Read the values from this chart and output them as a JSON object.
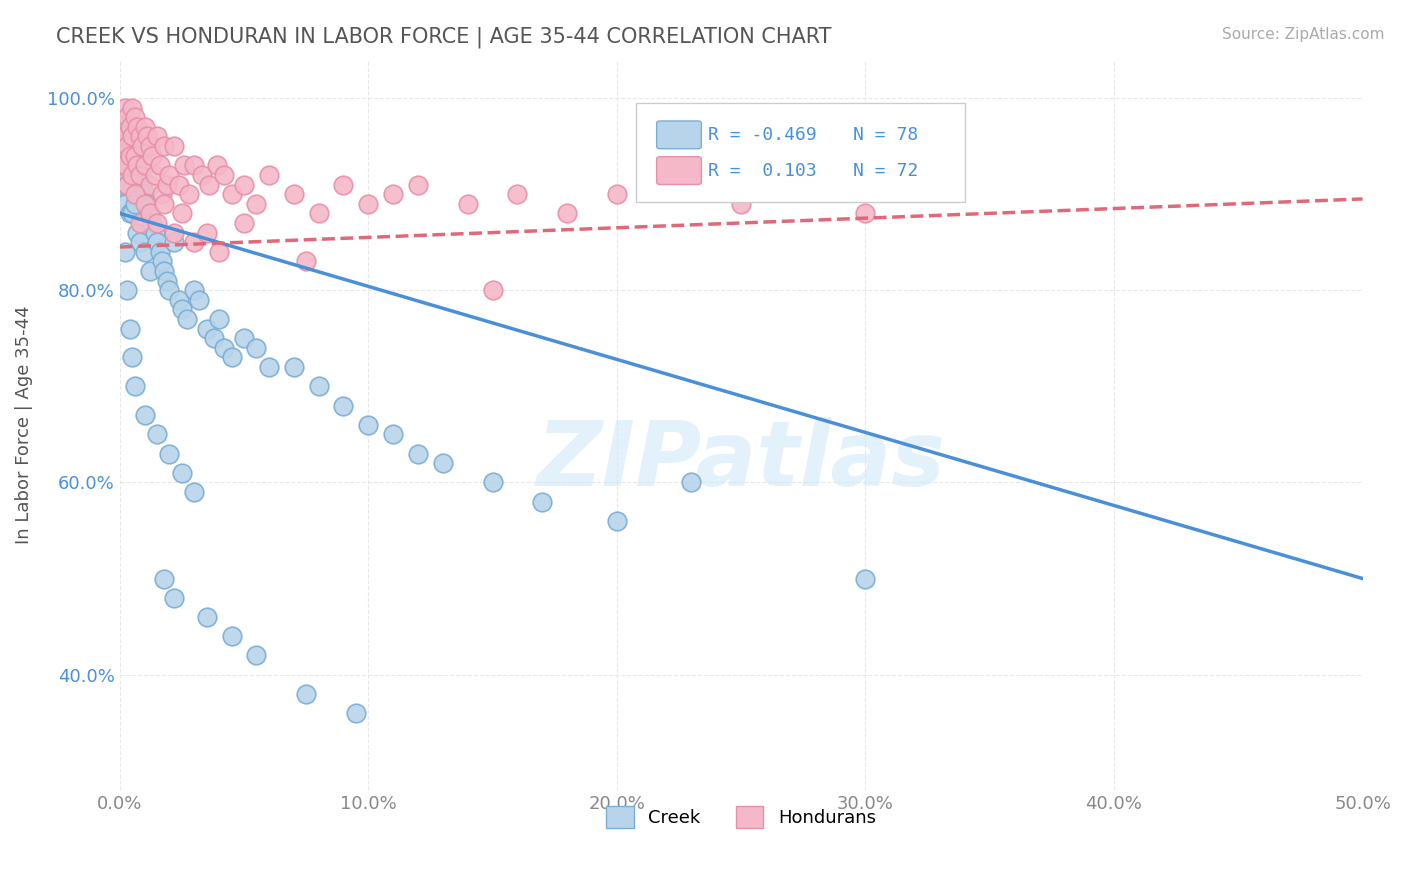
{
  "title": "CREEK VS HONDURAN IN LABOR FORCE | AGE 35-44 CORRELATION CHART",
  "source": "Source: ZipAtlas.com",
  "ylabel": "In Labor Force | Age 35-44",
  "xlim": [
    0.0,
    0.5
  ],
  "ylim": [
    0.28,
    1.04
  ],
  "xticks": [
    0.0,
    0.1,
    0.2,
    0.3,
    0.4,
    0.5
  ],
  "xticklabels": [
    "0.0%",
    "10.0%",
    "20.0%",
    "30.0%",
    "40.0%",
    "50.0%"
  ],
  "yticks": [
    0.4,
    0.6,
    0.8,
    1.0
  ],
  "yticklabels": [
    "40.0%",
    "60.0%",
    "80.0%",
    "100.0%"
  ],
  "creek_color": "#b8d4ea",
  "honduran_color": "#f4b8c8",
  "creek_edge": "#7aaed4",
  "honduran_edge": "#e890a8",
  "trend_creek_color": "#4a90d9",
  "trend_honduran_color": "#e06878",
  "creek_R": -0.469,
  "creek_N": 78,
  "honduran_R": 0.103,
  "honduran_N": 72,
  "watermark": "ZIPatlas",
  "background_color": "#ffffff",
  "grid_color": "#e8e8e8",
  "title_color": "#555555",
  "axis_label_color": "#555555",
  "creek_trend_x0": 0.0,
  "creek_trend_y0": 0.88,
  "creek_trend_x1": 0.5,
  "creek_trend_y1": 0.5,
  "honduran_trend_x0": 0.0,
  "honduran_trend_y0": 0.845,
  "honduran_trend_x1": 0.5,
  "honduran_trend_y1": 0.895,
  "creek_scatter_x": [
    0.001,
    0.001,
    0.001,
    0.002,
    0.002,
    0.002,
    0.002,
    0.003,
    0.003,
    0.003,
    0.004,
    0.004,
    0.005,
    0.005,
    0.005,
    0.006,
    0.006,
    0.007,
    0.007,
    0.008,
    0.008,
    0.009,
    0.01,
    0.01,
    0.011,
    0.012,
    0.012,
    0.013,
    0.014,
    0.015,
    0.016,
    0.017,
    0.018,
    0.019,
    0.02,
    0.022,
    0.024,
    0.025,
    0.027,
    0.03,
    0.032,
    0.035,
    0.038,
    0.04,
    0.042,
    0.045,
    0.05,
    0.055,
    0.06,
    0.07,
    0.08,
    0.09,
    0.1,
    0.11,
    0.12,
    0.13,
    0.15,
    0.17,
    0.2,
    0.23,
    0.002,
    0.003,
    0.004,
    0.005,
    0.006,
    0.01,
    0.015,
    0.02,
    0.025,
    0.03,
    0.018,
    0.022,
    0.035,
    0.045,
    0.055,
    0.075,
    0.095,
    0.3
  ],
  "creek_scatter_y": [
    0.96,
    0.93,
    0.91,
    0.98,
    0.95,
    0.92,
    0.89,
    0.97,
    0.94,
    0.91,
    0.95,
    0.88,
    0.96,
    0.93,
    0.88,
    0.94,
    0.89,
    0.93,
    0.86,
    0.92,
    0.85,
    0.91,
    0.9,
    0.84,
    0.89,
    0.88,
    0.82,
    0.87,
    0.86,
    0.85,
    0.84,
    0.83,
    0.82,
    0.81,
    0.8,
    0.85,
    0.79,
    0.78,
    0.77,
    0.8,
    0.79,
    0.76,
    0.75,
    0.77,
    0.74,
    0.73,
    0.75,
    0.74,
    0.72,
    0.72,
    0.7,
    0.68,
    0.66,
    0.65,
    0.63,
    0.62,
    0.6,
    0.58,
    0.56,
    0.6,
    0.84,
    0.8,
    0.76,
    0.73,
    0.7,
    0.67,
    0.65,
    0.63,
    0.61,
    0.59,
    0.5,
    0.48,
    0.46,
    0.44,
    0.42,
    0.38,
    0.36,
    0.5
  ],
  "honduran_scatter_x": [
    0.001,
    0.001,
    0.002,
    0.002,
    0.002,
    0.003,
    0.003,
    0.003,
    0.004,
    0.004,
    0.005,
    0.005,
    0.005,
    0.006,
    0.006,
    0.007,
    0.007,
    0.008,
    0.008,
    0.009,
    0.01,
    0.01,
    0.011,
    0.012,
    0.012,
    0.013,
    0.014,
    0.015,
    0.016,
    0.017,
    0.018,
    0.019,
    0.02,
    0.022,
    0.024,
    0.026,
    0.028,
    0.03,
    0.033,
    0.036,
    0.039,
    0.042,
    0.045,
    0.05,
    0.055,
    0.06,
    0.07,
    0.08,
    0.09,
    0.1,
    0.11,
    0.12,
    0.14,
    0.16,
    0.18,
    0.2,
    0.25,
    0.3,
    0.006,
    0.008,
    0.01,
    0.012,
    0.015,
    0.018,
    0.022,
    0.025,
    0.03,
    0.035,
    0.04,
    0.05,
    0.075,
    0.15
  ],
  "honduran_scatter_y": [
    0.96,
    0.93,
    0.99,
    0.96,
    0.93,
    0.98,
    0.95,
    0.91,
    0.97,
    0.94,
    0.99,
    0.96,
    0.92,
    0.98,
    0.94,
    0.97,
    0.93,
    0.96,
    0.92,
    0.95,
    0.97,
    0.93,
    0.96,
    0.95,
    0.91,
    0.94,
    0.92,
    0.96,
    0.93,
    0.9,
    0.95,
    0.91,
    0.92,
    0.95,
    0.91,
    0.93,
    0.9,
    0.93,
    0.92,
    0.91,
    0.93,
    0.92,
    0.9,
    0.91,
    0.89,
    0.92,
    0.9,
    0.88,
    0.91,
    0.89,
    0.9,
    0.91,
    0.89,
    0.9,
    0.88,
    0.9,
    0.89,
    0.88,
    0.9,
    0.87,
    0.89,
    0.88,
    0.87,
    0.89,
    0.86,
    0.88,
    0.85,
    0.86,
    0.84,
    0.87,
    0.83,
    0.8
  ]
}
